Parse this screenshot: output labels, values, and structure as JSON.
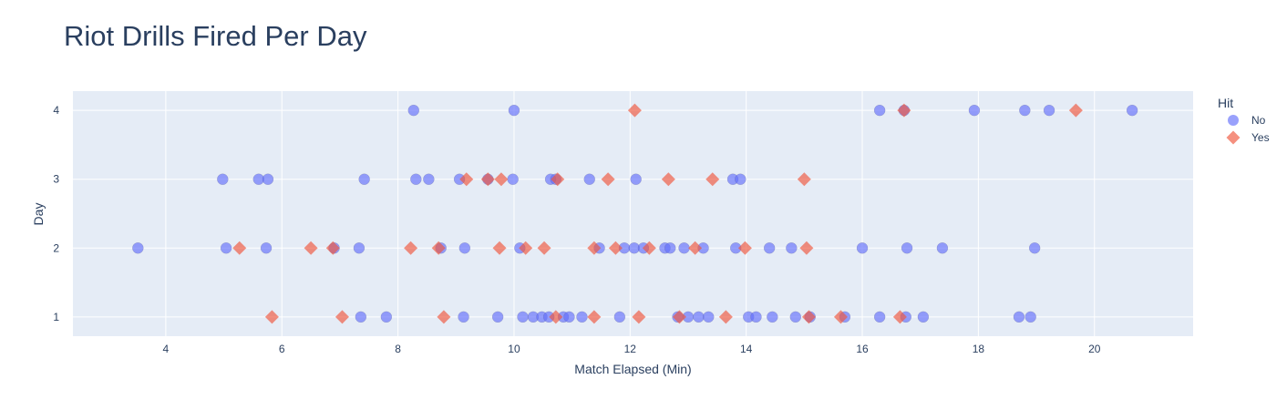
{
  "chart_data": {
    "type": "scatter",
    "title": "Riot Drills Fired Per Day",
    "xlabel": "Match Elapsed (Min)",
    "ylabel": "Day",
    "xlim": [
      2.4,
      21.7
    ],
    "ylim": [
      0.72,
      4.28
    ],
    "xticks": [
      4,
      6,
      8,
      10,
      12,
      14,
      16,
      18,
      20
    ],
    "yticks": [
      1,
      2,
      3,
      4
    ],
    "grid": true,
    "legend": {
      "title": "Hit",
      "placement": "right"
    },
    "series": [
      {
        "name": "No",
        "color": "#636efa",
        "marker": "circle",
        "points": [
          [
            8.27,
            4
          ],
          [
            10.0,
            4
          ],
          [
            16.3,
            4
          ],
          [
            16.72,
            4
          ],
          [
            17.93,
            4
          ],
          [
            18.8,
            4
          ],
          [
            19.22,
            4
          ],
          [
            20.65,
            4
          ],
          [
            4.98,
            3
          ],
          [
            5.6,
            3
          ],
          [
            5.76,
            3
          ],
          [
            7.42,
            3
          ],
          [
            8.31,
            3
          ],
          [
            8.53,
            3
          ],
          [
            9.06,
            3
          ],
          [
            9.55,
            3
          ],
          [
            9.98,
            3
          ],
          [
            10.63,
            3
          ],
          [
            10.72,
            3
          ],
          [
            11.3,
            3
          ],
          [
            12.1,
            3
          ],
          [
            13.77,
            3
          ],
          [
            13.9,
            3
          ],
          [
            3.52,
            2
          ],
          [
            5.04,
            2
          ],
          [
            5.73,
            2
          ],
          [
            6.9,
            2
          ],
          [
            7.33,
            2
          ],
          [
            8.74,
            2
          ],
          [
            9.15,
            2
          ],
          [
            10.1,
            2
          ],
          [
            11.47,
            2
          ],
          [
            11.9,
            2
          ],
          [
            12.07,
            2
          ],
          [
            12.23,
            2
          ],
          [
            12.6,
            2
          ],
          [
            12.69,
            2
          ],
          [
            12.93,
            2
          ],
          [
            13.26,
            2
          ],
          [
            13.82,
            2
          ],
          [
            14.4,
            2
          ],
          [
            14.78,
            2
          ],
          [
            16.0,
            2
          ],
          [
            16.77,
            2
          ],
          [
            17.38,
            2
          ],
          [
            18.97,
            2
          ],
          [
            7.36,
            1
          ],
          [
            7.8,
            1
          ],
          [
            9.13,
            1
          ],
          [
            9.72,
            1
          ],
          [
            10.15,
            1
          ],
          [
            10.33,
            1
          ],
          [
            10.48,
            1
          ],
          [
            10.6,
            1
          ],
          [
            10.85,
            1
          ],
          [
            10.95,
            1
          ],
          [
            11.17,
            1
          ],
          [
            11.82,
            1
          ],
          [
            12.82,
            1
          ],
          [
            13.0,
            1
          ],
          [
            13.18,
            1
          ],
          [
            13.35,
            1
          ],
          [
            14.04,
            1
          ],
          [
            14.17,
            1
          ],
          [
            14.45,
            1
          ],
          [
            14.85,
            1
          ],
          [
            15.1,
            1
          ],
          [
            15.7,
            1
          ],
          [
            16.3,
            1
          ],
          [
            16.75,
            1
          ],
          [
            17.05,
            1
          ],
          [
            18.7,
            1
          ],
          [
            18.9,
            1
          ]
        ]
      },
      {
        "name": "Yes",
        "color": "#ef553b",
        "marker": "diamond",
        "points": [
          [
            12.08,
            4
          ],
          [
            16.72,
            4
          ],
          [
            19.68,
            4
          ],
          [
            9.18,
            3
          ],
          [
            9.55,
            3
          ],
          [
            9.78,
            3
          ],
          [
            10.75,
            3
          ],
          [
            11.62,
            3
          ],
          [
            12.66,
            3
          ],
          [
            13.42,
            3
          ],
          [
            15.0,
            3
          ],
          [
            5.27,
            2
          ],
          [
            6.5,
            2
          ],
          [
            6.88,
            2
          ],
          [
            8.22,
            2
          ],
          [
            8.7,
            2
          ],
          [
            9.75,
            2
          ],
          [
            10.2,
            2
          ],
          [
            10.52,
            2
          ],
          [
            11.38,
            2
          ],
          [
            11.75,
            2
          ],
          [
            12.33,
            2
          ],
          [
            13.12,
            2
          ],
          [
            13.98,
            2
          ],
          [
            15.04,
            2
          ],
          [
            5.83,
            1
          ],
          [
            7.04,
            1
          ],
          [
            8.79,
            1
          ],
          [
            10.72,
            1
          ],
          [
            11.38,
            1
          ],
          [
            12.15,
            1
          ],
          [
            12.85,
            1
          ],
          [
            13.65,
            1
          ],
          [
            15.08,
            1
          ],
          [
            15.63,
            1
          ],
          [
            16.65,
            1
          ]
        ]
      }
    ]
  }
}
